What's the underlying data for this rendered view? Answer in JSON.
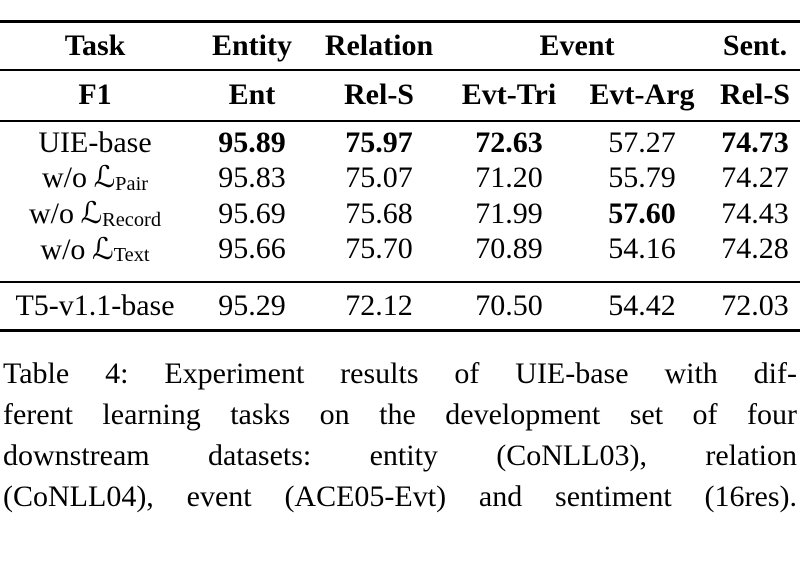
{
  "table": {
    "header_row1": {
      "task": "Task",
      "entity": "Entity",
      "relation": "Relation",
      "event": "Event",
      "sent": "Sent."
    },
    "header_row2": {
      "f1": "F1",
      "ent": "Ent",
      "rel_s": "Rel-S",
      "evt_tri": "Evt-Tri",
      "evt_arg": "Evt-Arg",
      "rel_s2": "Rel-S"
    },
    "rows": [
      {
        "label": "UIE-base",
        "cells": [
          {
            "v": "95.89",
            "bold": true
          },
          {
            "v": "75.97",
            "bold": true
          },
          {
            "v": "72.63",
            "bold": true
          },
          {
            "v": "57.27",
            "bold": false
          },
          {
            "v": "74.73",
            "bold": true
          }
        ]
      },
      {
        "label_prefix": "w/o",
        "label_symbol": "ℒ",
        "label_sub": "Pair",
        "cells": [
          {
            "v": "95.83",
            "bold": false
          },
          {
            "v": "75.07",
            "bold": false
          },
          {
            "v": "71.20",
            "bold": false
          },
          {
            "v": "55.79",
            "bold": false
          },
          {
            "v": "74.27",
            "bold": false
          }
        ]
      },
      {
        "label_prefix": "w/o",
        "label_symbol": "ℒ",
        "label_sub": "Record",
        "cells": [
          {
            "v": "95.69",
            "bold": false
          },
          {
            "v": "75.68",
            "bold": false
          },
          {
            "v": "71.99",
            "bold": false
          },
          {
            "v": "57.60",
            "bold": true
          },
          {
            "v": "74.43",
            "bold": false
          }
        ]
      },
      {
        "label_prefix": "w/o",
        "label_symbol": "ℒ",
        "label_sub": "Text",
        "cells": [
          {
            "v": "95.66",
            "bold": false
          },
          {
            "v": "75.70",
            "bold": false
          },
          {
            "v": "70.89",
            "bold": false
          },
          {
            "v": "54.16",
            "bold": false
          },
          {
            "v": "74.28",
            "bold": false
          }
        ]
      }
    ],
    "baseline_row": {
      "label": "T5-v1.1-base",
      "cells": [
        {
          "v": "95.29",
          "bold": false
        },
        {
          "v": "72.12",
          "bold": false
        },
        {
          "v": "70.50",
          "bold": false
        },
        {
          "v": "54.42",
          "bold": false
        },
        {
          "v": "72.03",
          "bold": false
        }
      ]
    }
  },
  "caption": {
    "lines": [
      "Table 4: Experiment results of UIE-base with dif-",
      "ferent learning tasks on the development set of four",
      "downstream datasets: entity (CoNLL03), relation",
      "(CoNLL04), event (ACE05-Evt) and sentiment (16res)."
    ]
  }
}
